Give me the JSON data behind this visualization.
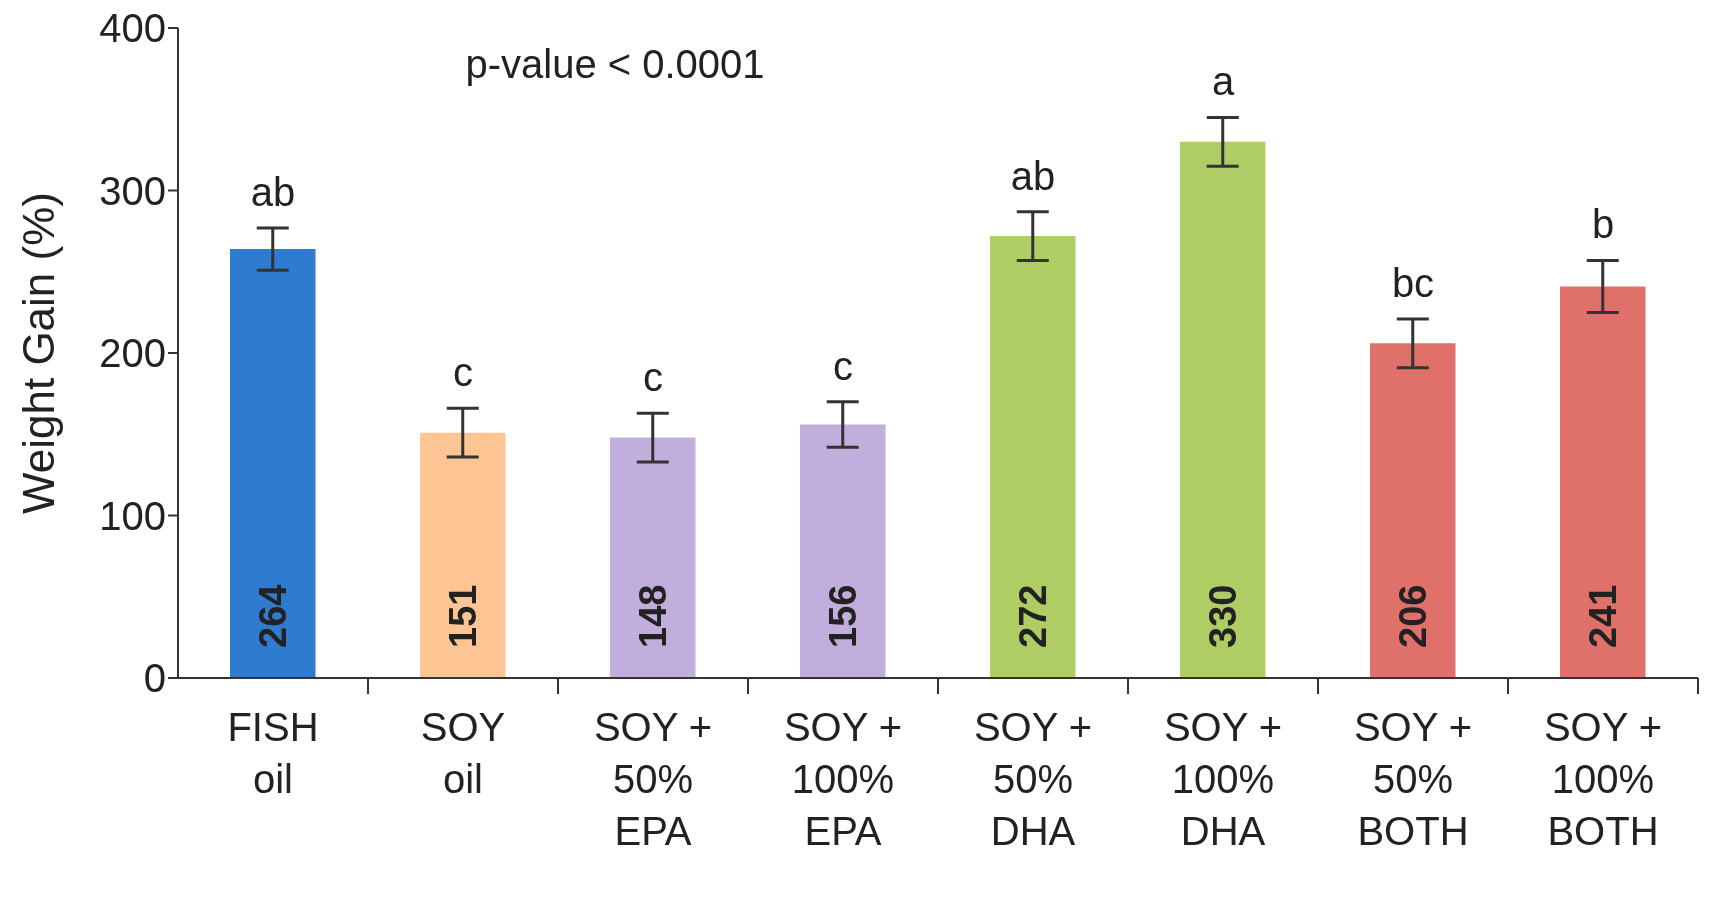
{
  "chart_data": {
    "type": "bar",
    "ylabel": "Weight Gain (%)",
    "categories": [
      "FISH\noil",
      "SOY\noil",
      "SOY +\n50%\nEPA",
      "SOY +\n100%\nEPA",
      "SOY +\n50%\nDHA",
      "SOY +\n100%\nDHA",
      "SOY +\n50%\nBOTH",
      "SOY +\n100%\nBOTH"
    ],
    "values": [
      264,
      151,
      148,
      156,
      272,
      330,
      206,
      241
    ],
    "errors": [
      13,
      15,
      15,
      14,
      15,
      15,
      15,
      16
    ],
    "colors": [
      "#2e7bcf",
      "#fdc593",
      "#c2aedc",
      "#c2aedc",
      "#aecd65",
      "#aecd65",
      "#e0706a",
      "#e0706a"
    ],
    "data_labels": true,
    "ylim": [
      0,
      400
    ],
    "yticks": [
      0,
      100,
      200,
      300,
      400
    ],
    "annotations": [
      "p-value < 0.0001",
      {
        "text": "ab",
        "x": "FISH\noil",
        "y": 277
      },
      {
        "text": "c",
        "x": "SOY\noil",
        "y": 166
      },
      {
        "text": "c",
        "x": "SOY +\n50%\nEPA",
        "y": 163
      },
      {
        "text": "c",
        "x": "SOY +\n100%\nEPA",
        "y": 170
      },
      {
        "text": "ab",
        "x": "SOY +\n50%\nDHA",
        "y": 287
      },
      {
        "text": "a",
        "x": "SOY +\n100%\nDHA",
        "y": 345
      },
      {
        "text": "bc",
        "x": "SOY +\n50%\nBOTH",
        "y": 221
      },
      {
        "text": "b",
        "x": "SOY +\n100%\nBOTH",
        "y": 257
      }
    ]
  }
}
